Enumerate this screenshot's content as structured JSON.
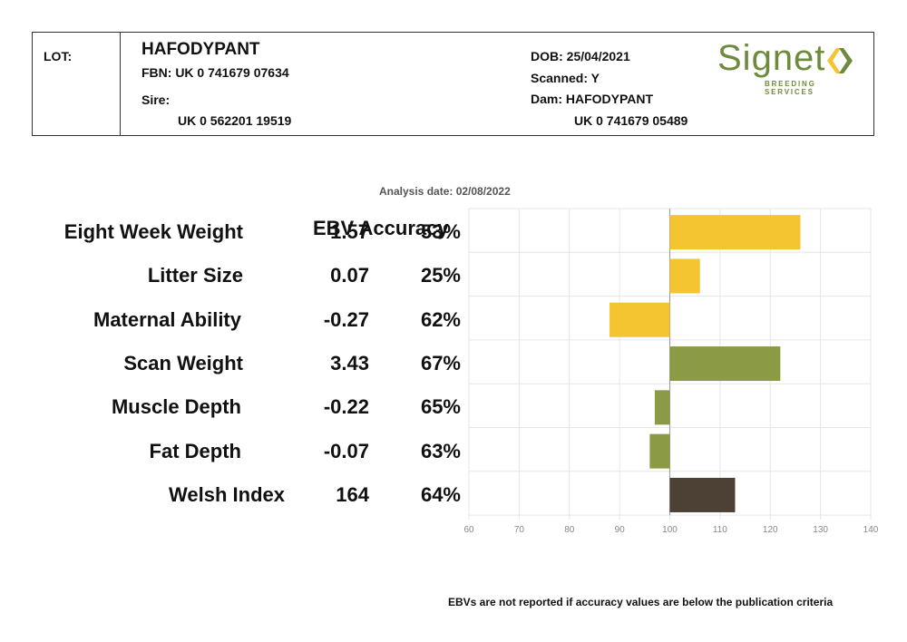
{
  "header": {
    "lot_label": "LOT:",
    "name": "HAFODYPANT",
    "fbn": "FBN: UK 0 741679 07634",
    "sire_label": "Sire:",
    "sire_id": "UK 0 562201 19519",
    "dob": "DOB: 25/04/2021",
    "scanned": "Scanned: Y",
    "dam": "Dam: HAFODYPANT",
    "dam_id": "UK 0 741679 05489",
    "logo_text": "Signet",
    "logo_sub": "BREEDING SERVICES",
    "logo_color": "#6e8b3d"
  },
  "analysis_date": "Analysis date: 02/08/2022",
  "column_header": "EBV Accuracy",
  "footnote": "EBVs are not reported if accuracy values are below the publication criteria",
  "chart_data": {
    "type": "bar",
    "orientation": "horizontal",
    "categories": [
      "Eight Week Weight",
      "Litter Size",
      "Maternal Ability",
      "Scan Weight",
      "Muscle Depth",
      "Fat Depth",
      "Welsh Index"
    ],
    "ebv": [
      "1.57",
      "0.07",
      "-0.27",
      "3.43",
      "-0.22",
      "-0.07",
      "164"
    ],
    "accuracy": [
      "53%",
      "25%",
      "62%",
      "67%",
      "65%",
      "63%",
      "64%"
    ],
    "values": [
      126,
      106,
      88,
      122,
      97,
      96,
      113
    ],
    "baseline": 100,
    "xlim": [
      60,
      140
    ],
    "xticks": [
      60,
      70,
      80,
      90,
      100,
      110,
      120,
      130,
      140
    ],
    "bar_colors": [
      "#f5c431",
      "#f5c431",
      "#f5c431",
      "#8a9a45",
      "#8a9a45",
      "#8a9a45",
      "#4d4035"
    ],
    "grid": true
  }
}
